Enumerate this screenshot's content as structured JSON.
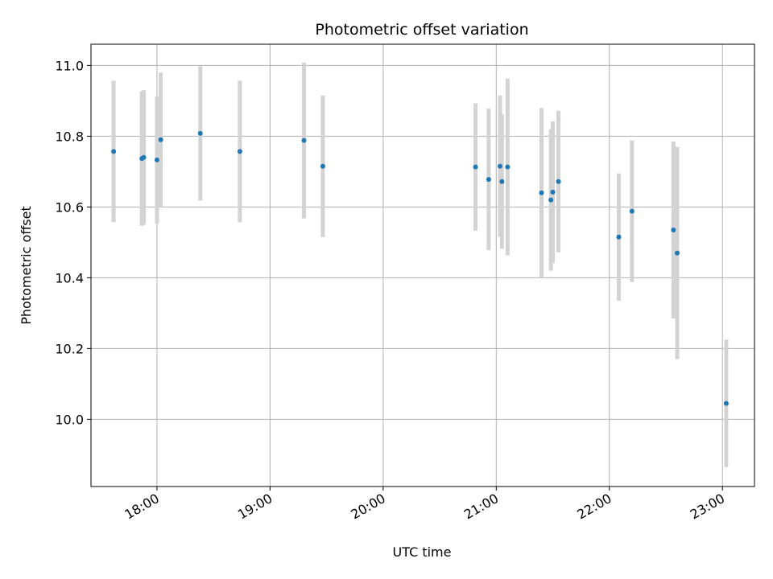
{
  "chart_data": {
    "type": "scatter",
    "title": "Photometric offset variation",
    "xlabel": "UTC time",
    "ylabel": "Photometric offset",
    "x_axis_kind": "time",
    "xlim": [
      "17:25",
      "23:17"
    ],
    "ylim": [
      9.81,
      11.06
    ],
    "x_ticks": [
      "18:00",
      "19:00",
      "20:00",
      "21:00",
      "22:00",
      "23:00"
    ],
    "y_ticks": [
      10.0,
      10.2,
      10.4,
      10.6,
      10.8,
      11.0
    ],
    "grid": true,
    "legend": "none",
    "colors": {
      "point": "#1f77b4",
      "errorbar": "#d3d3d3",
      "grid": "#b0b0b0"
    },
    "points": [
      {
        "time": "17:37",
        "y": 10.757,
        "err": 0.2
      },
      {
        "time": "17:52",
        "y": 10.737,
        "err": 0.19
      },
      {
        "time": "17:53",
        "y": 10.74,
        "err": 0.19
      },
      {
        "time": "18:00",
        "y": 10.733,
        "err": 0.18
      },
      {
        "time": "18:02",
        "y": 10.79,
        "err": 0.19
      },
      {
        "time": "18:23",
        "y": 10.808,
        "err": 0.19
      },
      {
        "time": "18:44",
        "y": 10.757,
        "err": 0.2
      },
      {
        "time": "19:18",
        "y": 10.788,
        "err": 0.22
      },
      {
        "time": "19:28",
        "y": 10.715,
        "err": 0.2
      },
      {
        "time": "20:49",
        "y": 10.713,
        "err": 0.18
      },
      {
        "time": "20:56",
        "y": 10.678,
        "err": 0.2
      },
      {
        "time": "21:02",
        "y": 10.715,
        "err": 0.2
      },
      {
        "time": "21:03",
        "y": 10.672,
        "err": 0.19
      },
      {
        "time": "21:06",
        "y": 10.713,
        "err": 0.25
      },
      {
        "time": "21:24",
        "y": 10.64,
        "err": 0.24
      },
      {
        "time": "21:29",
        "y": 10.62,
        "err": 0.2
      },
      {
        "time": "21:30",
        "y": 10.642,
        "err": 0.2
      },
      {
        "time": "21:33",
        "y": 10.672,
        "err": 0.2
      },
      {
        "time": "22:05",
        "y": 10.515,
        "err": 0.18
      },
      {
        "time": "22:12",
        "y": 10.588,
        "err": 0.2
      },
      {
        "time": "22:34",
        "y": 10.535,
        "err": 0.25
      },
      {
        "time": "22:36",
        "y": 10.47,
        "err": 0.3
      },
      {
        "time": "23:02",
        "y": 10.045,
        "err": 0.18
      }
    ]
  }
}
